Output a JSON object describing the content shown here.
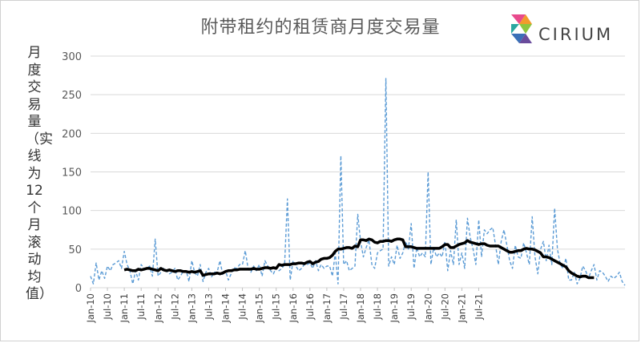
{
  "title": "附带租约的租赁商月度交易量",
  "logo_text": "CIRIUM",
  "chart_data": {
    "type": "line",
    "title": "附带租约的租赁商月度交易量",
    "ylabel": "月度交易量（实线为12个月滚动均值）",
    "xlabel": "",
    "ylim": [
      0,
      300
    ],
    "yticks": [
      0,
      50,
      100,
      150,
      200,
      250,
      300
    ],
    "xtick_labels": [
      "Jan-10",
      "Jul-10",
      "Jan-11",
      "Jul-11",
      "Jan-12",
      "Jul-12",
      "Jan-13",
      "Jul-13",
      "Jan-14",
      "Jul-14",
      "Jan-15",
      "Jul-15",
      "Jan-16",
      "Jul-16",
      "Jan-17",
      "Jul-17",
      "Jan-18",
      "Jul-18",
      "Jan-19",
      "Jul-19",
      "Jan-20",
      "Jul-20",
      "Jan-21",
      "Jul-21"
    ],
    "grid": true,
    "legend": "none",
    "series": [
      {
        "style": "dashed",
        "color": "#5b9bd5",
        "values": [
          15,
          5,
          32,
          10,
          22,
          12,
          28,
          22,
          30,
          32,
          35,
          25,
          47,
          30,
          22,
          5,
          22,
          10,
          30,
          25,
          25,
          28,
          15,
          63,
          15,
          20,
          25,
          22,
          18,
          20,
          25,
          10,
          15,
          22,
          22,
          8,
          35,
          20,
          15,
          30,
          8,
          20,
          25,
          14,
          20,
          20,
          35,
          17,
          22,
          10,
          18,
          26,
          25,
          30,
          30,
          48,
          25,
          20,
          28,
          22,
          30,
          15,
          35,
          28,
          22,
          18,
          26,
          22,
          25,
          30,
          115,
          10,
          35,
          28,
          22,
          25,
          30,
          30,
          32,
          25,
          35,
          22,
          30,
          25,
          28,
          28,
          15,
          45,
          5,
          171,
          30,
          35,
          22,
          25,
          28,
          95,
          60,
          40,
          52,
          62,
          30,
          25,
          45,
          48,
          50,
          271,
          28,
          40,
          30,
          55,
          38,
          45,
          60,
          50,
          83,
          25,
          52,
          40,
          45,
          40,
          150,
          30,
          52,
          40,
          45,
          40,
          60,
          22,
          48,
          30,
          88,
          30,
          45,
          25,
          90,
          65,
          50,
          30,
          88,
          40,
          75,
          70,
          75,
          78,
          55,
          30,
          60,
          75,
          55,
          35,
          25,
          55,
          40,
          38,
          58,
          45,
          30,
          92,
          40,
          18,
          50,
          60,
          35,
          55,
          30,
          103,
          50,
          30,
          25,
          38,
          10,
          10,
          20,
          5,
          12,
          28,
          22,
          12,
          22,
          30,
          10,
          22,
          20,
          15,
          8,
          15,
          12,
          15,
          20,
          8,
          3
        ]
      },
      {
        "style": "solid",
        "color": "#000000",
        "start_index": 12,
        "values": [
          23,
          24,
          23,
          22,
          22,
          24,
          23,
          24,
          25,
          25,
          24,
          23,
          22,
          25,
          23,
          22,
          23,
          22,
          21,
          22,
          22,
          21,
          21,
          20,
          21,
          20,
          21,
          22,
          16,
          17,
          18,
          18,
          18,
          19,
          18,
          19,
          21,
          22,
          22,
          23,
          23,
          24,
          24,
          24,
          24,
          24,
          25,
          24,
          24,
          25,
          26,
          26,
          25,
          26,
          25,
          30,
          29,
          30,
          30,
          30,
          31,
          31,
          32,
          32,
          31,
          33,
          34,
          31,
          33,
          34,
          37,
          38,
          38,
          39,
          42,
          47,
          50,
          50,
          51,
          52,
          52,
          51,
          54,
          53,
          62,
          62,
          61,
          63,
          62,
          59,
          58,
          60,
          60,
          61,
          61,
          60,
          62,
          63,
          63,
          62,
          53,
          53,
          53,
          52,
          51,
          51,
          51,
          51,
          51,
          51,
          51,
          51,
          51,
          53,
          56,
          56,
          52,
          52,
          54,
          56,
          57,
          58,
          61,
          59,
          58,
          57,
          56,
          57,
          57,
          55,
          54,
          54,
          54,
          54,
          52,
          50,
          48,
          46,
          46,
          47,
          48,
          48,
          50,
          51,
          50,
          50,
          49,
          47,
          45,
          40,
          40,
          39,
          37,
          35,
          33,
          31,
          29,
          27,
          22,
          19,
          17,
          15,
          14,
          15,
          15,
          13,
          13,
          13
        ]
      }
    ]
  }
}
